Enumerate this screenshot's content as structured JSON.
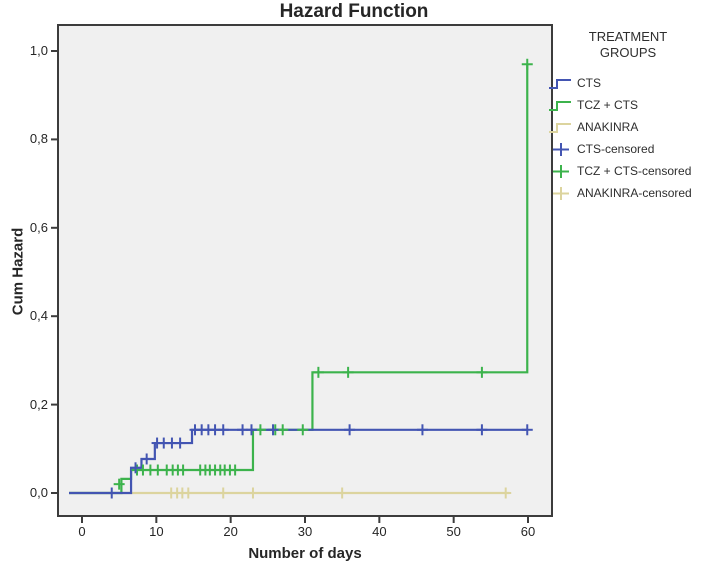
{
  "chart_data": {
    "type": "line",
    "subtype": "step-function-cumulative-hazard",
    "title": "Hazard Function",
    "xlabel": "Number of days",
    "ylabel": "Cum Hazard",
    "xlim": [
      0,
      60
    ],
    "ylim": [
      0,
      1.0
    ],
    "grid": false,
    "plot_bg": "#f0f0f0",
    "border_color": "#3c3c3c",
    "xticks": [
      {
        "value": 0,
        "label": "0"
      },
      {
        "value": 10,
        "label": "10"
      },
      {
        "value": 20,
        "label": "20"
      },
      {
        "value": 30,
        "label": "30"
      },
      {
        "value": 40,
        "label": "40"
      },
      {
        "value": 50,
        "label": "50"
      },
      {
        "value": 60,
        "label": "60"
      }
    ],
    "yticks": [
      {
        "value": 0.0,
        "label": "0,0"
      },
      {
        "value": 0.2,
        "label": "0,2"
      },
      {
        "value": 0.4,
        "label": "0,4"
      },
      {
        "value": 0.6,
        "label": "0,6"
      },
      {
        "value": 0.8,
        "label": "0,8"
      },
      {
        "value": 1.0,
        "label": "1,0"
      }
    ],
    "series": [
      {
        "name": "CTS",
        "color": "#4355b2",
        "steps": [
          [
            0,
            0
          ],
          [
            6.6,
            0.057
          ],
          [
            8,
            0.077
          ],
          [
            9.8,
            0.113
          ],
          [
            14.8,
            0.143
          ]
        ],
        "end_day": 60,
        "censored": [
          [
            4,
            0
          ],
          [
            7.2,
            0.057
          ],
          [
            8.7,
            0.077
          ],
          [
            10.1,
            0.113
          ],
          [
            11,
            0.113
          ],
          [
            12.1,
            0.113
          ],
          [
            13.2,
            0.113
          ],
          [
            15.2,
            0.143
          ],
          [
            16.1,
            0.143
          ],
          [
            17,
            0.143
          ],
          [
            17.9,
            0.143
          ],
          [
            19,
            0.143
          ],
          [
            21.6,
            0.143
          ],
          [
            22.8,
            0.143
          ],
          [
            25.7,
            0.143
          ],
          [
            36,
            0.143
          ],
          [
            45.8,
            0.143
          ],
          [
            53.8,
            0.143
          ],
          [
            59.9,
            0.143
          ]
        ]
      },
      {
        "name": "TCZ + CTS",
        "color": "#3cb34c",
        "steps": [
          [
            0,
            0
          ],
          [
            5.3,
            0.032
          ],
          [
            6.6,
            0.052
          ],
          [
            23,
            0.143
          ],
          [
            31,
            0.273
          ],
          [
            59.9,
            0.97
          ]
        ],
        "end_day": 59.9,
        "censored": [
          [
            5,
            0.02
          ],
          [
            7.4,
            0.052
          ],
          [
            8.2,
            0.052
          ],
          [
            9.2,
            0.052
          ],
          [
            10.2,
            0.052
          ],
          [
            11.4,
            0.052
          ],
          [
            12.2,
            0.052
          ],
          [
            12.9,
            0.052
          ],
          [
            13.6,
            0.052
          ],
          [
            15.9,
            0.052
          ],
          [
            16.6,
            0.052
          ],
          [
            17.2,
            0.052
          ],
          [
            17.9,
            0.052
          ],
          [
            18.6,
            0.052
          ],
          [
            19.2,
            0.052
          ],
          [
            19.9,
            0.052
          ],
          [
            20.6,
            0.052
          ],
          [
            24,
            0.143
          ],
          [
            26,
            0.143
          ],
          [
            27,
            0.143
          ],
          [
            29.7,
            0.143
          ],
          [
            31.8,
            0.273
          ],
          [
            35.8,
            0.273
          ],
          [
            53.8,
            0.273
          ],
          [
            59.9,
            0.97
          ]
        ]
      },
      {
        "name": "ANAKINRA",
        "color": "#dcd49e",
        "steps": [
          [
            0,
            0
          ]
        ],
        "end_day": 57.5,
        "censored": [
          [
            12,
            0
          ],
          [
            12.8,
            0
          ],
          [
            13.5,
            0
          ],
          [
            14.3,
            0
          ],
          [
            19,
            0
          ],
          [
            23,
            0
          ],
          [
            35,
            0
          ],
          [
            57,
            0
          ]
        ]
      }
    ],
    "legend": {
      "title": "TREATMENT GROUPS",
      "position": "right",
      "entries": [
        {
          "label": "CTS",
          "color": "#4355b2",
          "marker": "step-line"
        },
        {
          "label": "TCZ + CTS",
          "color": "#3cb34c",
          "marker": "step-line"
        },
        {
          "label": "ANAKINRA",
          "color": "#dcd49e",
          "marker": "step-line"
        },
        {
          "label": "CTS-censored",
          "color": "#4355b2",
          "marker": "plus"
        },
        {
          "label": "TCZ + CTS-censored",
          "color": "#3cb34c",
          "marker": "plus"
        },
        {
          "label": "ANAKINRA-censored",
          "color": "#dcd49e",
          "marker": "plus"
        }
      ]
    }
  }
}
